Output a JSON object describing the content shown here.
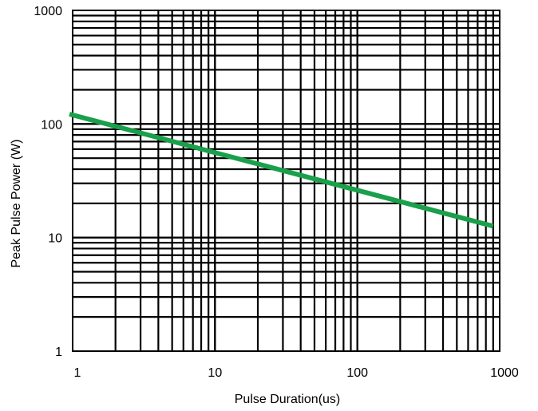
{
  "chart_data": {
    "type": "line",
    "title": "",
    "xlabel": "Pulse Duration(us)",
    "ylabel": "Peak Pulse Power (W)",
    "x_scale": "log",
    "y_scale": "log",
    "xlim": [
      1,
      1000
    ],
    "ylim": [
      1,
      1000
    ],
    "x_ticks": [
      {
        "value": 1,
        "label": "1"
      },
      {
        "value": 10,
        "label": "10"
      },
      {
        "value": 100,
        "label": "100"
      },
      {
        "value": 1000,
        "label": "1000"
      }
    ],
    "y_ticks": [
      {
        "value": 1,
        "label": "1"
      },
      {
        "value": 10,
        "label": "10"
      },
      {
        "value": 100,
        "label": "100"
      },
      {
        "value": 1000,
        "label": "1000"
      }
    ],
    "grid": true,
    "series": [
      {
        "color": "#1aa04a",
        "points": [
          {
            "x": 0.95,
            "y": 122
          },
          {
            "x": 900,
            "y": 12.6
          }
        ]
      }
    ]
  }
}
